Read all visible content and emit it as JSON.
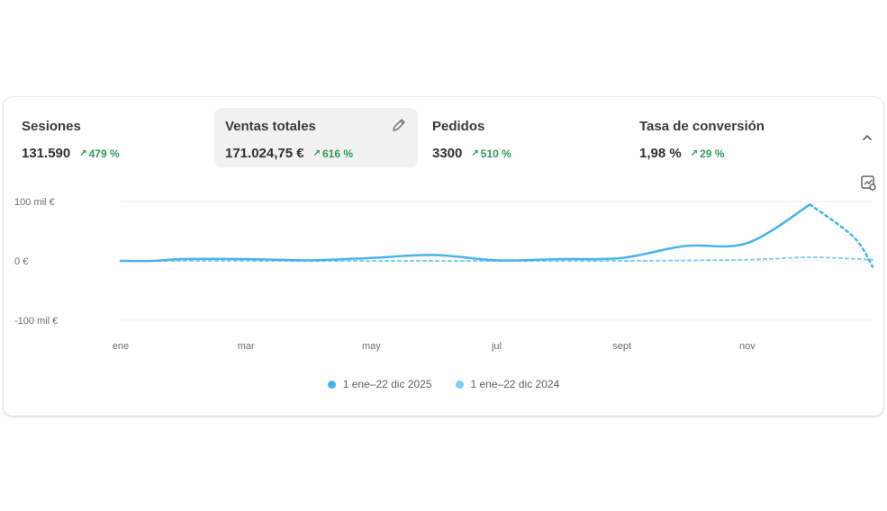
{
  "metrics": [
    {
      "label": "Sesiones",
      "value": "131.590",
      "delta": "479 %"
    },
    {
      "label": "Ventas totales",
      "value": "171.024,75 €",
      "delta": "616 %"
    },
    {
      "label": "Pedidos",
      "value": "3300",
      "delta": "510 %"
    },
    {
      "label": "Tasa de conversión",
      "value": "1,98 %",
      "delta": "29 %"
    }
  ],
  "colors": {
    "current": "#4ab3ec",
    "previous": "#7fcdf2",
    "positive": "#2e9a5e"
  },
  "chart_data": {
    "type": "line",
    "title": "",
    "x": [
      "ene",
      "mar",
      "may",
      "jul",
      "sept",
      "nov"
    ],
    "y_ticks": [
      "100 mil €",
      "0 €",
      "-100 mil €"
    ],
    "ylim": [
      -100000,
      100000
    ],
    "grid": true,
    "legend": "bottom",
    "series": [
      {
        "name": "1 ene–22 dic 2025",
        "style": "solid",
        "points": [
          [
            0,
            0
          ],
          [
            0.5,
            0
          ],
          [
            1,
            3000
          ],
          [
            2,
            3000
          ],
          [
            3,
            1000
          ],
          [
            4,
            5000
          ],
          [
            5,
            10000
          ],
          [
            6,
            1000
          ],
          [
            7,
            3000
          ],
          [
            8,
            5000
          ],
          [
            9,
            25000
          ],
          [
            10,
            30000
          ],
          [
            11,
            95000
          ],
          [
            11.7,
            40000
          ],
          [
            12,
            -10000
          ]
        ]
      },
      {
        "name": "1 ene–22 dic 2024",
        "style": "dashed",
        "points": [
          [
            0,
            0
          ],
          [
            2,
            0
          ],
          [
            4,
            0
          ],
          [
            6,
            0
          ],
          [
            8,
            0
          ],
          [
            10,
            2000
          ],
          [
            11,
            6000
          ],
          [
            12,
            2000
          ]
        ]
      }
    ]
  },
  "icons": {
    "edit": "pencil-icon",
    "collapse": "chevron-up-icon",
    "chart": "chart-settings-icon"
  }
}
